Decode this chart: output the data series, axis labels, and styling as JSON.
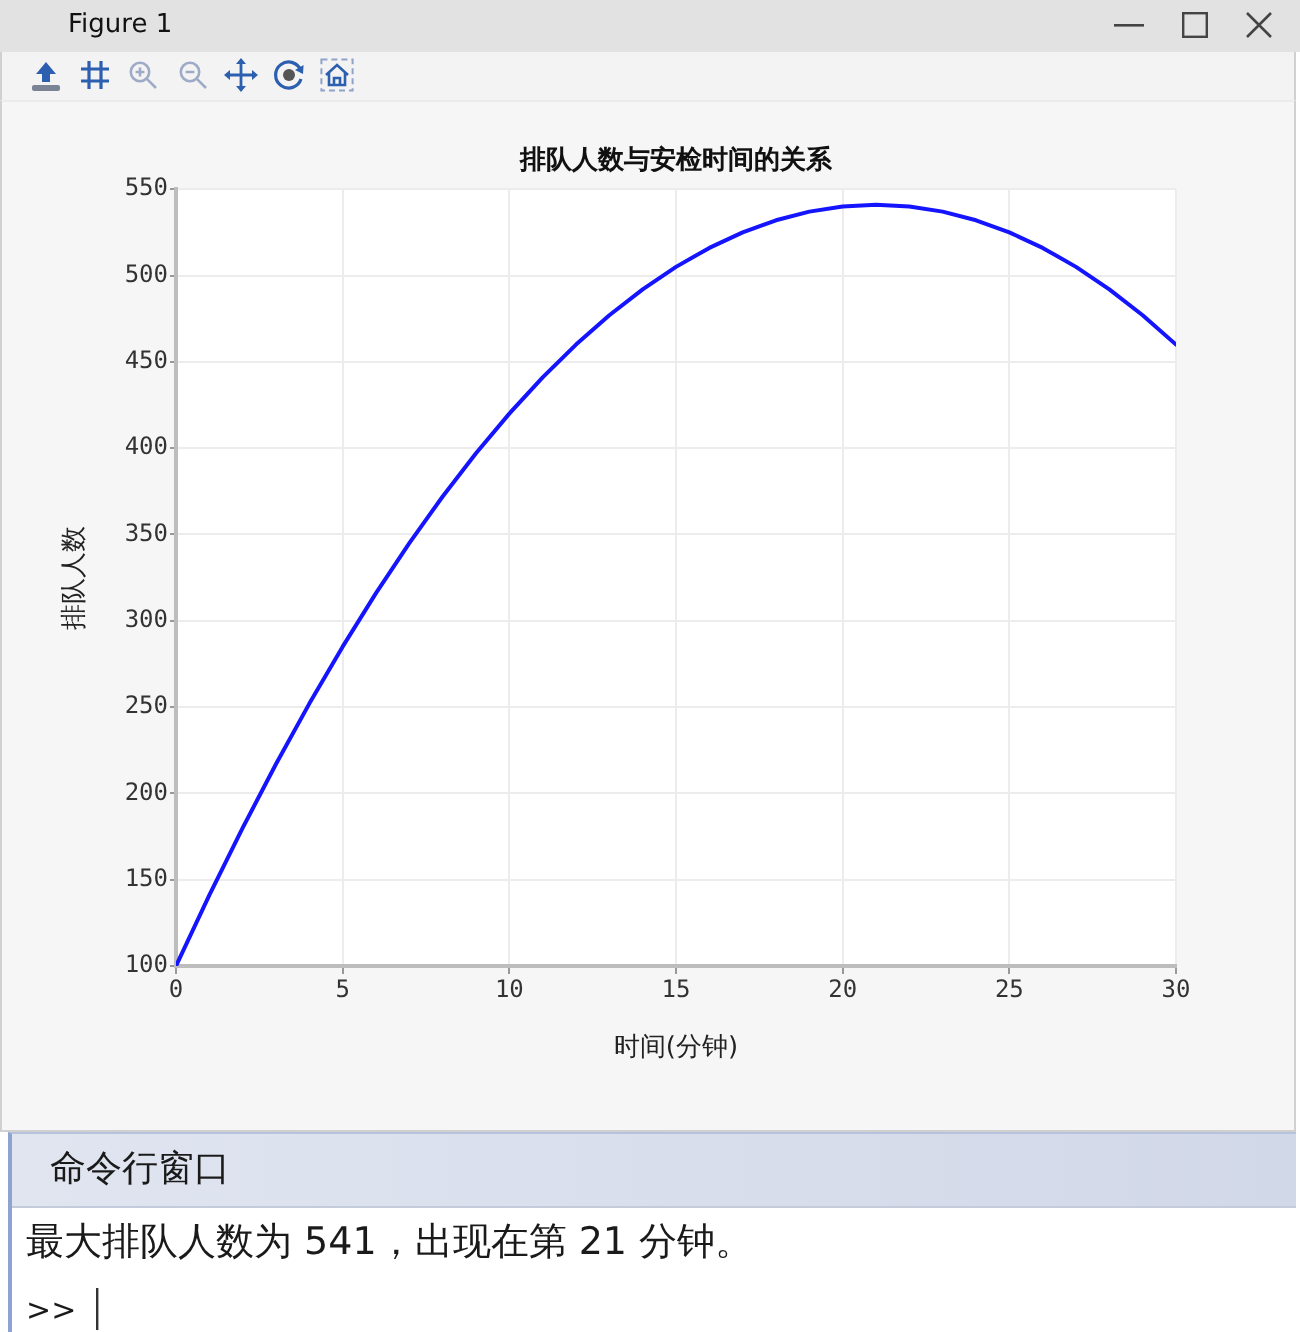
{
  "chart_data": {
    "type": "line",
    "title": "排队人数与安检时间的关系",
    "xlabel": "时间(分钟)",
    "ylabel": "排队人数",
    "x": [
      0,
      1,
      2,
      3,
      4,
      5,
      6,
      7,
      8,
      9,
      10,
      11,
      12,
      13,
      14,
      15,
      16,
      17,
      18,
      19,
      20,
      21,
      22,
      23,
      24,
      25,
      26,
      27,
      28,
      29,
      30
    ],
    "series": [
      {
        "color": "#1414ff",
        "values": [
          100,
          141,
          180,
          217,
          252,
          285,
          316,
          345,
          372,
          397,
          420,
          441,
          460,
          477,
          492,
          505,
          516,
          525,
          532,
          537,
          540,
          541,
          540,
          537,
          532,
          525,
          516,
          505,
          492,
          477,
          460
        ]
      }
    ],
    "xlim": [
      0,
      30
    ],
    "xticks": [
      0,
      5,
      10,
      15,
      20,
      25,
      30
    ],
    "ylim": [
      100,
      550
    ],
    "yticks": [
      100,
      150,
      200,
      250,
      300,
      350,
      400,
      450,
      500,
      550
    ],
    "grid": true,
    "marker": "none",
    "line_style": "solid",
    "annotations": [
      "Figure 1",
      "命令行窗口",
      "最大排队人数为 541，出现在第 21 分钟。",
      ">>"
    ]
  }
}
